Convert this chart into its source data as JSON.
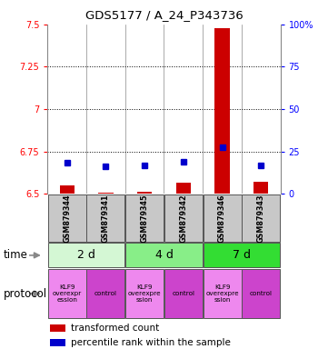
{
  "title": "GDS5177 / A_24_P343736",
  "samples": [
    "GSM879344",
    "GSM879341",
    "GSM879345",
    "GSM879342",
    "GSM879346",
    "GSM879343"
  ],
  "red_values": [
    6.55,
    6.505,
    6.51,
    6.565,
    7.48,
    6.57
  ],
  "blue_values": [
    6.685,
    6.66,
    6.667,
    6.688,
    6.775,
    6.667
  ],
  "ylim_left": [
    6.5,
    7.5
  ],
  "ylim_right": [
    0,
    100
  ],
  "yticks_left": [
    6.5,
    6.75,
    7.0,
    7.25,
    7.5
  ],
  "ytick_labels_left": [
    "6.5",
    "6.75",
    "7",
    "7.25",
    "7.5"
  ],
  "yticks_right": [
    0,
    25,
    50,
    75,
    100
  ],
  "ytick_labels_right": [
    "0",
    "25",
    "50",
    "75",
    "100%"
  ],
  "dotted_lines": [
    6.75,
    7.0,
    7.25
  ],
  "time_groups": [
    {
      "label": "2 d",
      "cols": [
        0,
        1
      ],
      "color": "#d4f7d4"
    },
    {
      "label": "4 d",
      "cols": [
        2,
        3
      ],
      "color": "#88ee88"
    },
    {
      "label": "7 d",
      "cols": [
        4,
        5
      ],
      "color": "#33dd33"
    }
  ],
  "proto_labels": [
    "KLF9\noverexpr\nession",
    "control",
    "KLF9\noverexpre\nssion",
    "control",
    "KLF9\noverexpre\nssion",
    "control"
  ],
  "proto_colors": [
    "#ee88ee",
    "#cc44cc",
    "#ee88ee",
    "#cc44cc",
    "#ee88ee",
    "#cc44cc"
  ],
  "bar_color_red": "#cc0000",
  "bar_color_blue": "#0000cc",
  "sample_bg": "#c8c8c8",
  "legend_red": "transformed count",
  "legend_blue": "percentile rank within the sample",
  "time_label": "time",
  "protocol_label": "protocol"
}
